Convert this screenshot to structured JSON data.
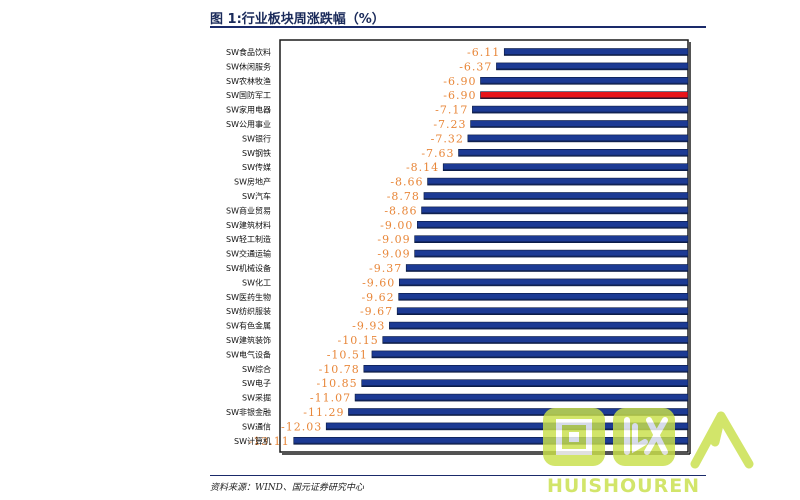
{
  "title": "图 1:行业板块周涨跌幅（%）",
  "source": "资料来源：WIND、国元证券研究中心",
  "watermark": {
    "brand": "HUISHOUREN",
    "logo_text": "回收人"
  },
  "colors": {
    "bar": "#1c3a94",
    "highlight": "#e8141b",
    "label": "#e8873a",
    "border": "#1a1a1a"
  },
  "chart_data": {
    "type": "bar",
    "orientation": "horizontal",
    "categories": [
      "SW食品饮料",
      "SW休闲服务",
      "SW农林牧渔",
      "SW国防军工",
      "SW家用电器",
      "SW公用事业",
      "SW银行",
      "SW钢铁",
      "SW传媒",
      "SW房地产",
      "SW汽车",
      "SW商业贸易",
      "SW建筑材料",
      "SW轻工制造",
      "SW交通运输",
      "SW机械设备",
      "SW化工",
      "SW医药生物",
      "SW纺织服装",
      "SW有色金属",
      "SW建筑装饰",
      "SW电气设备",
      "SW综合",
      "SW电子",
      "SW采掘",
      "SW非银金融",
      "SW通信",
      "SW计算机"
    ],
    "values": [
      -6.11,
      -6.37,
      -6.9,
      -6.9,
      -7.17,
      -7.23,
      -7.32,
      -7.63,
      -8.14,
      -8.66,
      -8.78,
      -8.86,
      -9.0,
      -9.09,
      -9.09,
      -9.37,
      -9.6,
      -9.62,
      -9.67,
      -9.93,
      -10.15,
      -10.51,
      -10.78,
      -10.85,
      -11.07,
      -11.29,
      -12.03,
      -13.11
    ],
    "value_labels": [
      "-6.11",
      "-6.37",
      "-6.90",
      "-6.90",
      "-7.17",
      "-7.23",
      "-7.32",
      "-7.63",
      "-8.14",
      "-8.66",
      "-8.78",
      "-8.86",
      "-9.00",
      "-9.09",
      "-9.09",
      "-9.37",
      "-9.60",
      "-9.62",
      "-9.67",
      "-9.93",
      "-10.15",
      "-10.51",
      "-10.78",
      "-10.85",
      "-11.07",
      "-11.29",
      "-12.03",
      "-13.11"
    ],
    "highlight_category": "SW国防军工",
    "xlim": [
      -13.5,
      0
    ],
    "grid": false,
    "legend": "none"
  }
}
